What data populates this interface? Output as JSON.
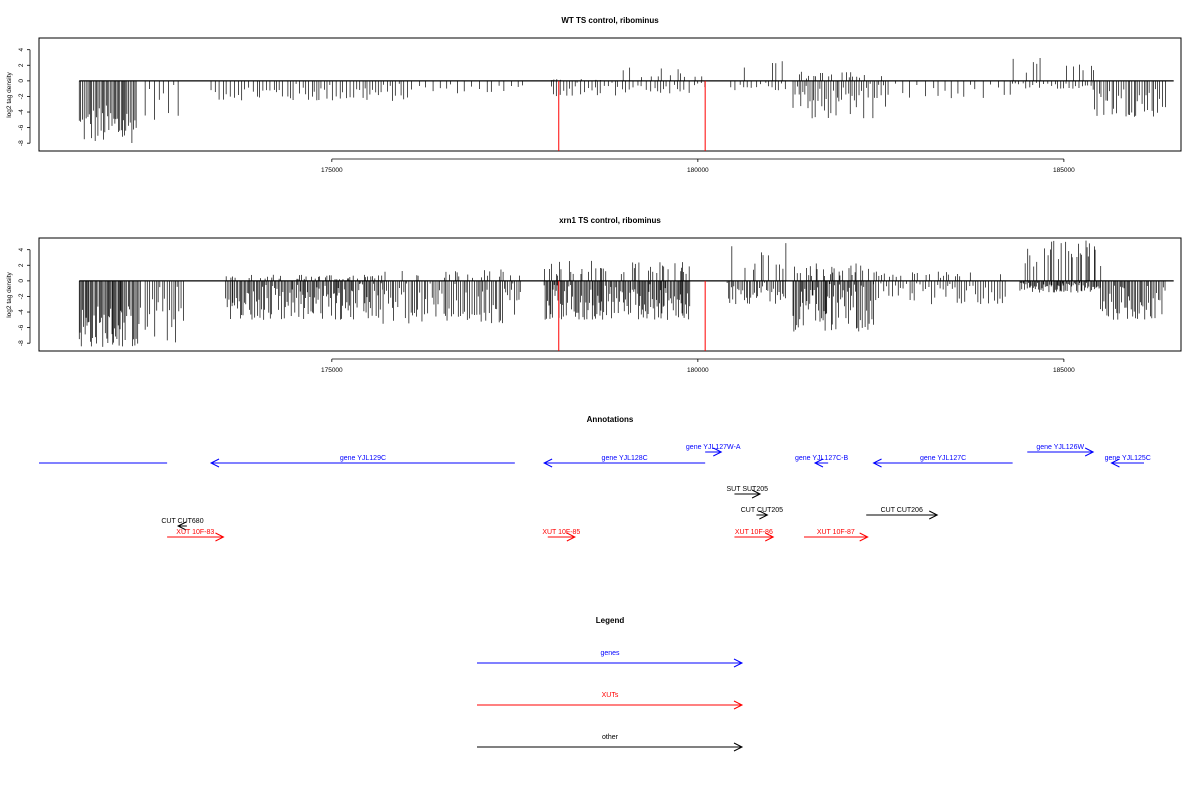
{
  "chart_data": [
    {
      "type": "bar",
      "title": "WT TS control, ribominus",
      "ylabel": "log2 tag density",
      "ylim": [
        -9,
        5.5
      ],
      "yticks": [
        -8,
        -6,
        -4,
        -2,
        0,
        2,
        4
      ],
      "xlim": [
        171000,
        186600
      ],
      "xticks": [
        175000,
        180000,
        185000
      ],
      "xtick_labels": [
        "175000",
        "180000",
        "185000"
      ],
      "color": "#000000",
      "highlight_color": "#ff0000",
      "markers": [
        {
          "x": 178100,
          "y": -9
        },
        {
          "x": 180100,
          "y": -9
        }
      ],
      "segments": [
        {
          "from": 171550,
          "to": 172350,
          "step": 20,
          "min": -8,
          "max": -3,
          "pos_max": 0
        },
        {
          "from": 172450,
          "to": 172950,
          "step": 60,
          "min": -5,
          "max": -0.5,
          "pos_max": 0
        },
        {
          "from": 173350,
          "to": 174350,
          "step": 45,
          "min": -2.5,
          "max": -0.3,
          "pos_max": 0
        },
        {
          "from": 174400,
          "to": 176100,
          "step": 40,
          "min": -2.6,
          "max": -0.3,
          "pos_max": 0
        },
        {
          "from": 176200,
          "to": 177700,
          "step": 80,
          "min": -1.6,
          "max": -0.3,
          "pos_max": 0
        },
        {
          "from": 178000,
          "to": 178900,
          "step": 40,
          "min": -2,
          "max": -0.2,
          "pos_max": 0.3
        },
        {
          "from": 178900,
          "to": 180100,
          "step": 55,
          "min": -1.6,
          "max": -0.2,
          "pos_max": 1.8
        },
        {
          "from": 180450,
          "to": 181200,
          "step": 55,
          "min": -1.2,
          "max": -0.2,
          "pos_max": 2.6
        },
        {
          "from": 181300,
          "to": 182600,
          "step": 28,
          "min": -4.8,
          "max": -0.3,
          "pos_max": 1.2
        },
        {
          "from": 182700,
          "to": 184300,
          "step": 90,
          "min": -2.3,
          "max": -0.3,
          "pos_max": 0
        },
        {
          "from": 184300,
          "to": 185400,
          "step": 45,
          "min": -1,
          "max": -0.2,
          "pos_max": 3
        },
        {
          "from": 185400,
          "to": 186400,
          "step": 30,
          "min": -4.6,
          "max": -0.5,
          "pos_max": 0
        }
      ]
    },
    {
      "type": "bar",
      "title": "xrn1 TS control, ribominus",
      "ylabel": "log2 tag density",
      "ylim": [
        -9,
        5.5
      ],
      "yticks": [
        -8,
        -6,
        -4,
        -2,
        0,
        2,
        4
      ],
      "xlim": [
        171000,
        186600
      ],
      "xticks": [
        175000,
        180000,
        185000
      ],
      "xtick_labels": [
        "175000",
        "180000",
        "185000"
      ],
      "color": "#000000",
      "highlight_color": "#ff0000",
      "markers": [
        {
          "x": 178100,
          "y": -9
        },
        {
          "x": 180100,
          "y": -9
        }
      ],
      "segments": [
        {
          "from": 171550,
          "to": 172400,
          "step": 16,
          "min": -8.5,
          "max": -3,
          "pos_max": 0
        },
        {
          "from": 172450,
          "to": 173000,
          "step": 30,
          "min": -8,
          "max": -0.5,
          "pos_max": 0
        },
        {
          "from": 173550,
          "to": 175700,
          "step": 18,
          "min": -5,
          "max": -0.3,
          "pos_max": 0.8
        },
        {
          "from": 175700,
          "to": 177600,
          "step": 25,
          "min": -5.5,
          "max": -0.3,
          "pos_max": 1.5
        },
        {
          "from": 177900,
          "to": 179900,
          "step": 16,
          "min": -5,
          "max": -0.3,
          "pos_max": 2.6
        },
        {
          "from": 180400,
          "to": 181200,
          "step": 22,
          "min": -3,
          "max": -0.2,
          "pos_max": 5
        },
        {
          "from": 181300,
          "to": 182400,
          "step": 16,
          "min": -6.5,
          "max": -0.3,
          "pos_max": 2.3
        },
        {
          "from": 182400,
          "to": 184200,
          "step": 35,
          "min": -3,
          "max": -0.3,
          "pos_max": 1.2
        },
        {
          "from": 184400,
          "to": 185500,
          "step": 14,
          "min": -1.5,
          "max": -0.2,
          "pos_max": 5.3
        },
        {
          "from": 185500,
          "to": 186400,
          "step": 20,
          "min": -5,
          "max": -0.5,
          "pos_max": 0
        }
      ]
    }
  ],
  "annotations": {
    "title": "Annotations",
    "items": [
      {
        "label": "",
        "x1": 171000,
        "x2": 172750,
        "dir": "none",
        "color": "#0000ff",
        "row": 0
      },
      {
        "label": "gene YJL129C",
        "x1": 173350,
        "x2": 177500,
        "dir": "left",
        "color": "#0000ff",
        "row": 0
      },
      {
        "label": "gene YJL128C",
        "x1": 177900,
        "x2": 180100,
        "dir": "left",
        "color": "#0000ff",
        "row": 0
      },
      {
        "label": "gene YJL127W-A",
        "x1": 180100,
        "x2": 180320,
        "dir": "right",
        "color": "#0000ff",
        "row": -1
      },
      {
        "label": "gene YJL127C-B",
        "x1": 181600,
        "x2": 181780,
        "dir": "left",
        "color": "#0000ff",
        "row": 0
      },
      {
        "label": "gene YJL127C",
        "x1": 182400,
        "x2": 184300,
        "dir": "left",
        "color": "#0000ff",
        "row": 0
      },
      {
        "label": "gene YJL126W",
        "x1": 184500,
        "x2": 185400,
        "dir": "right",
        "color": "#0000ff",
        "row": -1
      },
      {
        "label": "gene YJL125C",
        "x1": 185650,
        "x2": 186600,
        "dir": "left",
        "color": "#0000ff",
        "row": 0
      },
      {
        "label": "SUT SUT205",
        "x1": 180500,
        "x2": 180850,
        "dir": "right",
        "color": "#000000",
        "row": 2
      },
      {
        "label": "CUT CUT205",
        "x1": 180800,
        "x2": 180950,
        "dir": "right",
        "color": "#000000",
        "row": 3
      },
      {
        "label": "CUT CUT206",
        "x1": 182300,
        "x2": 183270,
        "dir": "right",
        "color": "#000000",
        "row": 3
      },
      {
        "label": "CUT CUT680",
        "x1": 172900,
        "x2": 173020,
        "dir": "left",
        "color": "#000000",
        "row": 4
      },
      {
        "label": "XUT 10F-83",
        "x1": 172750,
        "x2": 173520,
        "dir": "right",
        "color": "#ff0000",
        "row": 5
      },
      {
        "label": "XUT 10F-85",
        "x1": 177950,
        "x2": 178320,
        "dir": "right",
        "color": "#ff0000",
        "row": 5
      },
      {
        "label": "XUT 10F-86",
        "x1": 180500,
        "x2": 181030,
        "dir": "right",
        "color": "#ff0000",
        "row": 5
      },
      {
        "label": "XUT 10F-87",
        "x1": 181450,
        "x2": 182320,
        "dir": "right",
        "color": "#ff0000",
        "row": 5
      }
    ]
  },
  "legend": {
    "title": "Legend",
    "items": [
      {
        "label": "genes",
        "color": "#0000ff"
      },
      {
        "label": "XUTs",
        "color": "#ff0000"
      },
      {
        "label": "other",
        "color": "#000000"
      }
    ]
  }
}
